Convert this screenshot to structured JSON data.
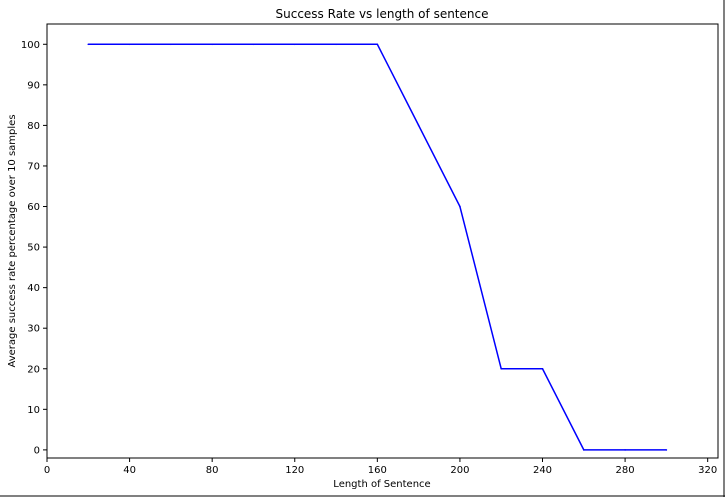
{
  "chart_data": {
    "type": "line",
    "title": "Success Rate vs length of sentence",
    "xlabel": "Length of Sentence",
    "ylabel": "Average success rate percentage over 10 samples",
    "xlim": [
      0,
      325
    ],
    "ylim": [
      -2,
      105
    ],
    "xticks": [
      0,
      40,
      80,
      120,
      160,
      200,
      240,
      280,
      320
    ],
    "yticks": [
      0,
      10,
      20,
      30,
      40,
      50,
      60,
      70,
      80,
      90,
      100
    ],
    "grid": false,
    "series": [
      {
        "color": "#0000ff",
        "x": [
          20,
          40,
          60,
          80,
          100,
          120,
          140,
          160,
          180,
          200,
          220,
          240,
          260,
          280,
          300
        ],
        "y": [
          100,
          100,
          100,
          100,
          100,
          100,
          100,
          100,
          80,
          60,
          20,
          20,
          0,
          0,
          0
        ]
      }
    ]
  }
}
